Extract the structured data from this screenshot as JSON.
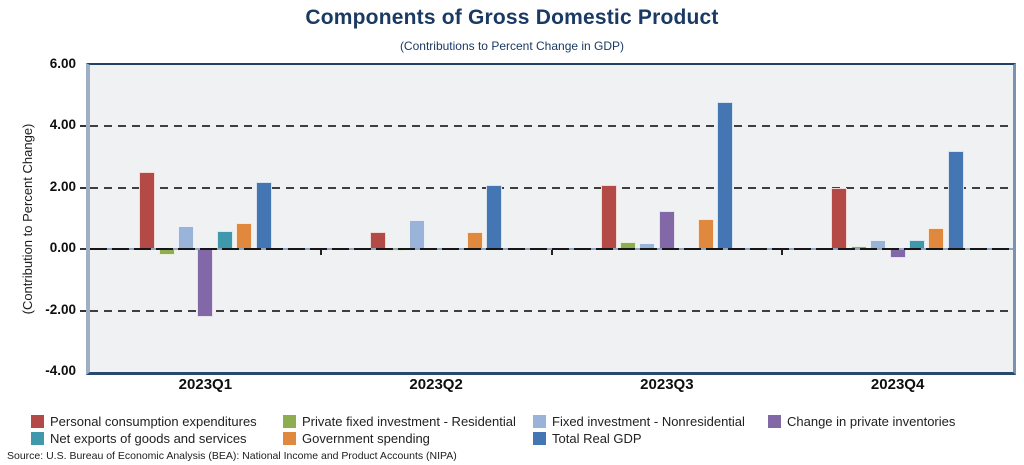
{
  "title": "Components of Gross Domestic Product",
  "subtitle": "(Contributions to Percent Change in GDP)",
  "source_note": "Source: U.S. Bureau of Economic Analysis (BEA): National Income and Product Accounts (NIPA)",
  "accent_color": "#1a3a64",
  "chart_data": {
    "type": "bar",
    "title": "Components of Gross Domestic Product",
    "subtitle": "(Contributions to Percent Change in GDP)",
    "ylabel": "(Contribution to Percent Change)",
    "xlabel": "",
    "categories": [
      "2023Q1",
      "2023Q2",
      "2023Q3",
      "2023Q4"
    ],
    "ylim": [
      -4,
      6
    ],
    "yticks": [
      {
        "value": 6,
        "label": "6.00"
      },
      {
        "value": 4,
        "label": "4.00"
      },
      {
        "value": 2,
        "label": "2.00"
      },
      {
        "value": 0,
        "label": "0.00"
      },
      {
        "value": -2,
        "label": "-2.00"
      },
      {
        "value": -4,
        "label": "-4.00"
      }
    ],
    "gridline_values": [
      4,
      2,
      -2
    ],
    "grid": "horizontal-dashed",
    "legend_position": "bottom",
    "series": [
      {
        "name": "Personal consumption expenditures",
        "color": "#b34a45",
        "values": [
          2.5,
          0.55,
          2.1,
          2.0
        ]
      },
      {
        "name": "Private fixed investment - Residential",
        "color": "#8dad50",
        "values": [
          -0.2,
          -0.05,
          0.25,
          0.1
        ]
      },
      {
        "name": "Fixed investment - Nonresidential",
        "color": "#9ab3d9",
        "values": [
          0.75,
          0.95,
          0.2,
          0.3
        ]
      },
      {
        "name": "Change in private inventories",
        "color": "#8268a6",
        "values": [
          -2.2,
          0.0,
          1.25,
          -0.3
        ]
      },
      {
        "name": "Net exports of goods and services",
        "color": "#3f98ab",
        "values": [
          0.6,
          0.0,
          0.0,
          0.3
        ]
      },
      {
        "name": "Government spending",
        "color": "#e0893e",
        "values": [
          0.85,
          0.55,
          1.0,
          0.7
        ]
      },
      {
        "name": "Total Real GDP",
        "color": "#4376b2",
        "values": [
          2.2,
          2.1,
          4.8,
          3.2
        ]
      }
    ]
  }
}
